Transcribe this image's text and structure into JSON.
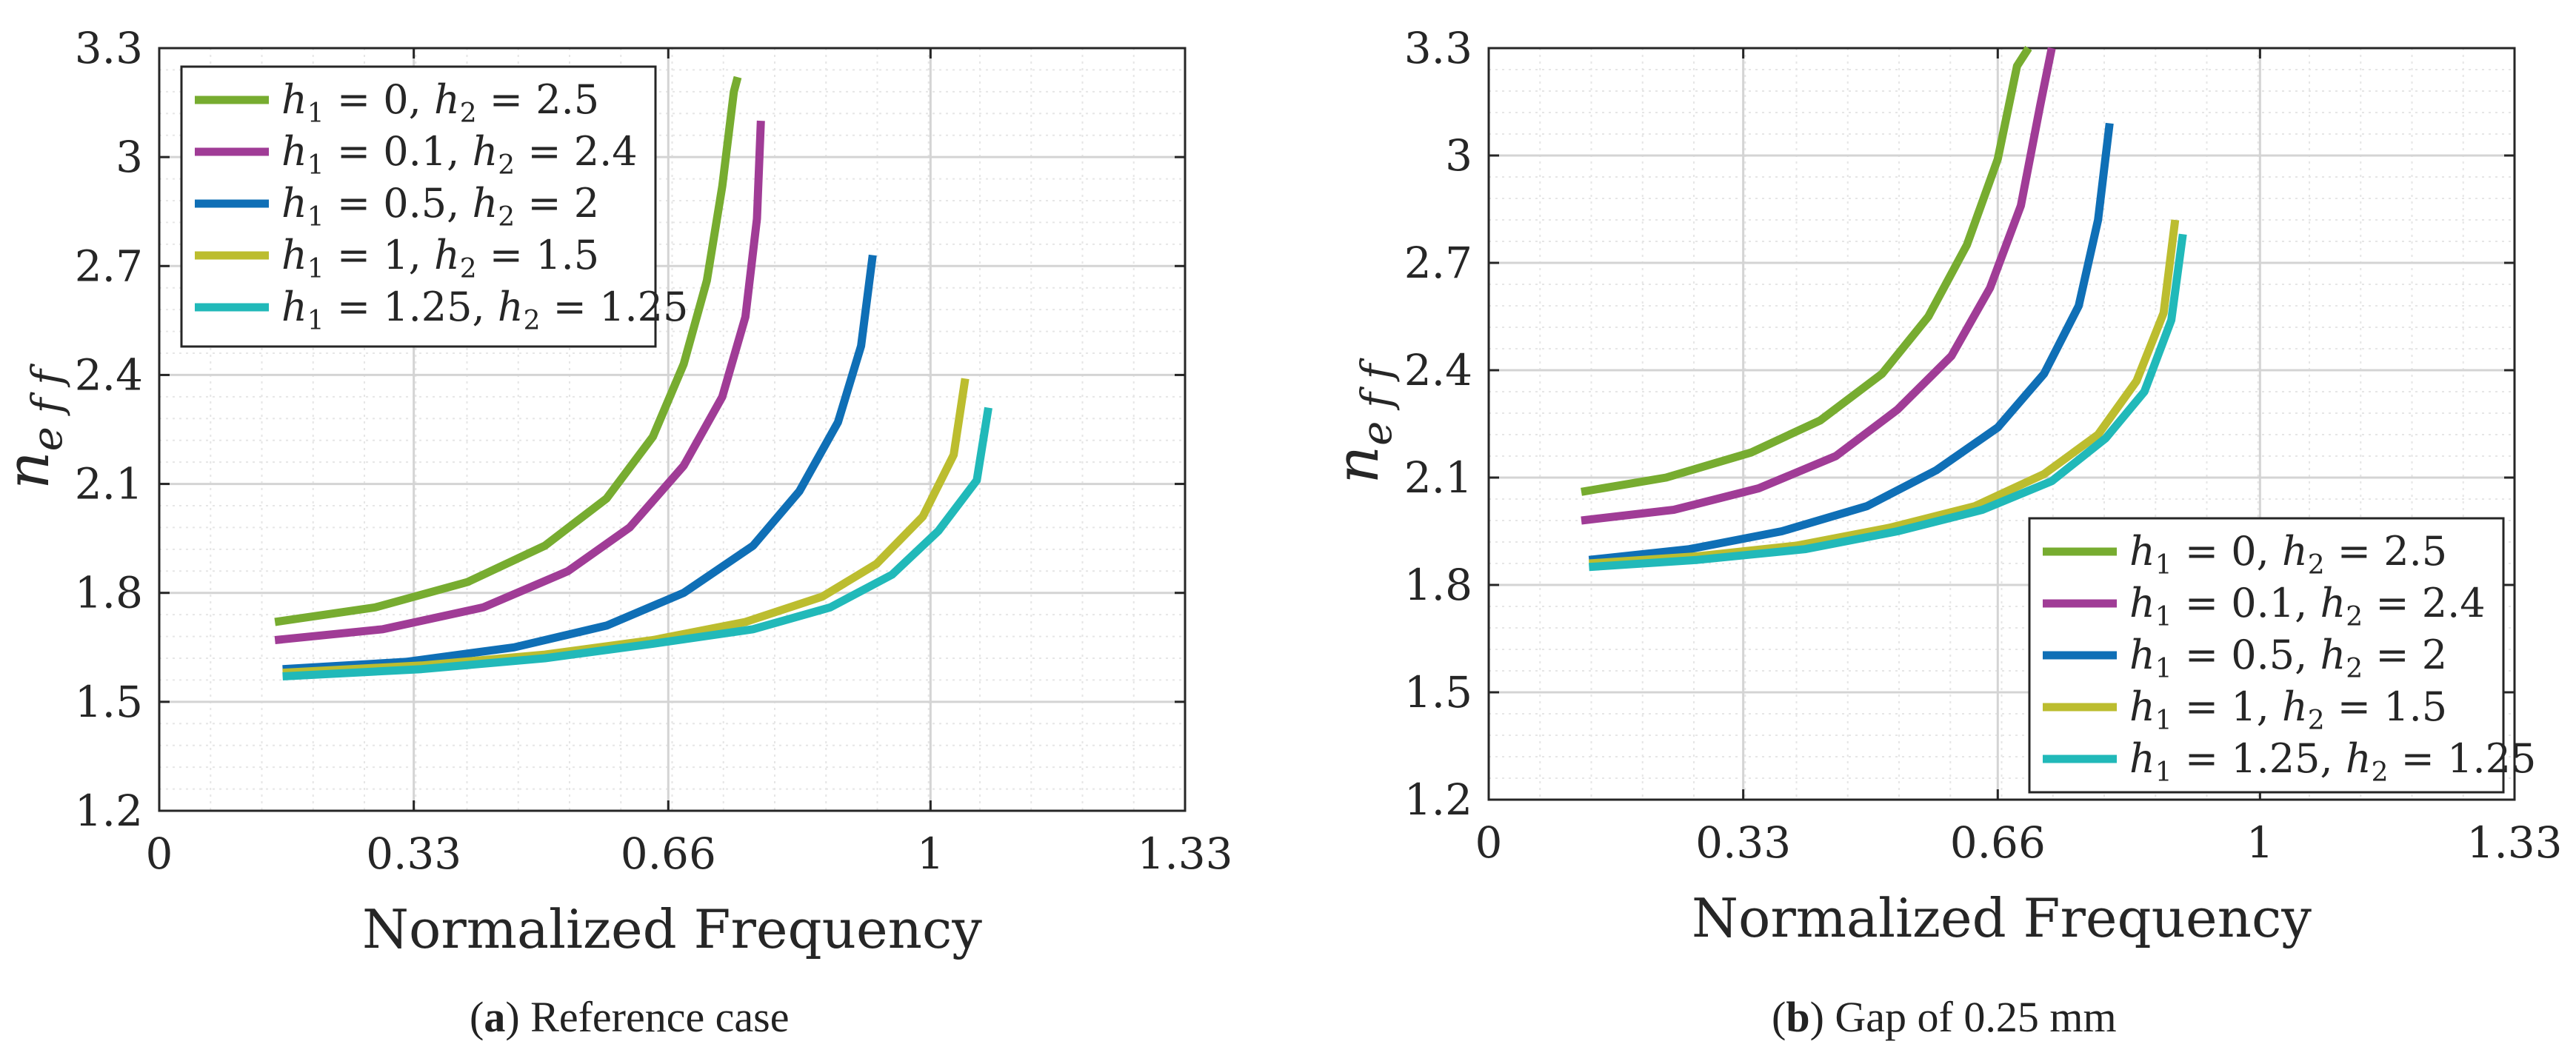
{
  "chart_data": [
    {
      "type": "line",
      "panel": "a",
      "title": "",
      "xlabel": "Normalized Frequency",
      "ylabel": "n_eff",
      "xlim": [
        0,
        1.33
      ],
      "ylim": [
        1.2,
        3.3
      ],
      "xticks": [
        0,
        0.33,
        0.66,
        1,
        1.33
      ],
      "xtick_labels": [
        "0",
        "0.33",
        "0.66",
        "1",
        "1.33"
      ],
      "yticks": [
        1.2,
        1.5,
        1.8,
        2.1,
        2.4,
        2.7,
        3.0,
        3.3
      ],
      "ytick_labels": [
        "1.2",
        "1.5",
        "1.8",
        "2.1",
        "2.4",
        "2.7",
        "3",
        "3.3"
      ],
      "grid": true,
      "minor_grid": true,
      "legend_position": "top-left",
      "series": [
        {
          "name": "h1 = 0, h2 = 2.5",
          "h1": "0",
          "h2": "2.5",
          "color": "#77ac30",
          "x": [
            0.15,
            0.28,
            0.4,
            0.5,
            0.58,
            0.64,
            0.68,
            0.71,
            0.73,
            0.745,
            0.75
          ],
          "y": [
            1.72,
            1.76,
            1.83,
            1.93,
            2.06,
            2.23,
            2.43,
            2.66,
            2.92,
            3.18,
            3.22
          ]
        },
        {
          "name": "h1 = 0.1, h2 = 2.4",
          "h1": "0.1",
          "h2": "2.4",
          "color": "#a03c96",
          "x": [
            0.15,
            0.29,
            0.42,
            0.53,
            0.61,
            0.68,
            0.73,
            0.76,
            0.775,
            0.78
          ],
          "y": [
            1.67,
            1.7,
            1.76,
            1.86,
            1.98,
            2.15,
            2.34,
            2.56,
            2.83,
            3.1
          ]
        },
        {
          "name": "h1 = 0.5, h2 = 2",
          "h1": "0.5",
          "h2": "2",
          "color": "#0f6fb6",
          "x": [
            0.16,
            0.32,
            0.46,
            0.58,
            0.68,
            0.77,
            0.83,
            0.88,
            0.91,
            0.925
          ],
          "y": [
            1.59,
            1.61,
            1.65,
            1.71,
            1.8,
            1.93,
            2.08,
            2.27,
            2.48,
            2.73
          ]
        },
        {
          "name": "h1 = 1, h2 = 1.5",
          "h1": "1",
          "h2": "1.5",
          "color": "#bcbd2f",
          "x": [
            0.16,
            0.34,
            0.5,
            0.64,
            0.76,
            0.86,
            0.93,
            0.99,
            1.03,
            1.045
          ],
          "y": [
            1.58,
            1.6,
            1.63,
            1.67,
            1.72,
            1.79,
            1.88,
            2.01,
            2.18,
            2.39
          ]
        },
        {
          "name": "h1 = 1.25, h2 = 1.25",
          "h1": "1.25",
          "h2": "1.25",
          "color": "#21b9b9",
          "x": [
            0.16,
            0.34,
            0.5,
            0.64,
            0.77,
            0.87,
            0.95,
            1.01,
            1.06,
            1.075
          ],
          "y": [
            1.57,
            1.59,
            1.62,
            1.66,
            1.7,
            1.76,
            1.85,
            1.97,
            2.11,
            2.31
          ]
        }
      ]
    },
    {
      "type": "line",
      "panel": "b",
      "title": "",
      "xlabel": "Normalized Frequency",
      "ylabel": "n_eff",
      "xlim": [
        0,
        1.33
      ],
      "ylim": [
        1.2,
        3.3
      ],
      "xticks": [
        0,
        0.33,
        0.66,
        1,
        1.33
      ],
      "xtick_labels": [
        "0",
        "0.33",
        "0.66",
        "1",
        "1.33"
      ],
      "yticks": [
        1.2,
        1.5,
        1.8,
        2.1,
        2.4,
        2.7,
        3.0,
        3.3
      ],
      "ytick_labels": [
        "1.2",
        "1.5",
        "1.8",
        "2.1",
        "2.4",
        "2.7",
        "3",
        "3.3"
      ],
      "grid": true,
      "minor_grid": true,
      "legend_position": "bottom-right",
      "series": [
        {
          "name": "h1 = 0, h2 = 2.5",
          "h1": "0",
          "h2": "2.5",
          "color": "#77ac30",
          "x": [
            0.12,
            0.23,
            0.34,
            0.43,
            0.51,
            0.57,
            0.62,
            0.66,
            0.685,
            0.7
          ],
          "y": [
            2.06,
            2.1,
            2.17,
            2.26,
            2.39,
            2.55,
            2.75,
            2.99,
            3.25,
            3.3
          ]
        },
        {
          "name": "h1 = 0.1, h2 = 2.4",
          "h1": "0.1",
          "h2": "2.4",
          "color": "#a03c96",
          "x": [
            0.12,
            0.24,
            0.35,
            0.45,
            0.53,
            0.6,
            0.65,
            0.69,
            0.715,
            0.73
          ],
          "y": [
            1.98,
            2.01,
            2.07,
            2.16,
            2.29,
            2.44,
            2.63,
            2.86,
            3.14,
            3.3
          ]
        },
        {
          "name": "h1 = 0.5, h2 = 2",
          "h1": "0.5",
          "h2": "2",
          "color": "#0f6fb6",
          "x": [
            0.13,
            0.26,
            0.38,
            0.49,
            0.58,
            0.66,
            0.72,
            0.765,
            0.79,
            0.805
          ],
          "y": [
            1.87,
            1.9,
            1.95,
            2.02,
            2.12,
            2.24,
            2.39,
            2.58,
            2.82,
            3.09
          ]
        },
        {
          "name": "h1 = 1, h2 = 1.5",
          "h1": "1",
          "h2": "1.5",
          "color": "#bcbd2f",
          "x": [
            0.13,
            0.27,
            0.4,
            0.52,
            0.63,
            0.72,
            0.79,
            0.84,
            0.875,
            0.89
          ],
          "y": [
            1.86,
            1.88,
            1.91,
            1.96,
            2.02,
            2.11,
            2.22,
            2.37,
            2.56,
            2.82
          ]
        },
        {
          "name": "h1 = 1.25, h2 = 1.25",
          "h1": "1.25",
          "h2": "1.25",
          "color": "#21b9b9",
          "x": [
            0.13,
            0.27,
            0.41,
            0.53,
            0.64,
            0.73,
            0.8,
            0.85,
            0.885,
            0.9
          ],
          "y": [
            1.85,
            1.87,
            1.9,
            1.95,
            2.01,
            2.09,
            2.21,
            2.34,
            2.54,
            2.78
          ]
        }
      ]
    }
  ],
  "captions": [
    {
      "label": "a",
      "text": "Reference case"
    },
    {
      "label": "b",
      "text": "Gap of 0.25 mm"
    }
  ]
}
